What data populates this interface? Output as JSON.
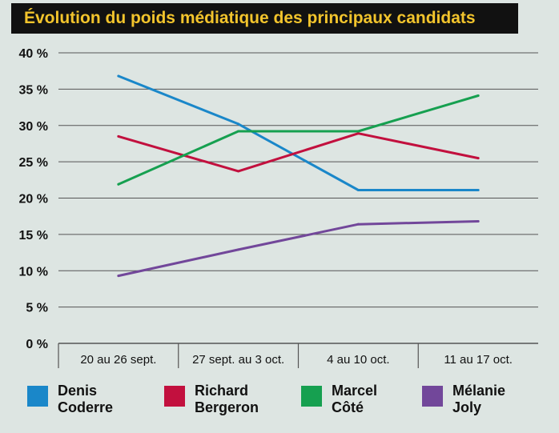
{
  "colors": {
    "background": "#dde5e2",
    "title_bg": "#111111",
    "title_text": "#f2c42c",
    "grid": "#555555"
  },
  "chart_data": {
    "type": "line",
    "title": "Évolution du poids médiatique des principaux candidats",
    "categories": [
      "20 au 26 sept.",
      "27 sept. au 3 oct.",
      "4 au 10 oct.",
      "11 au 17 oct."
    ],
    "ylim": [
      0,
      40
    ],
    "yticks": [
      0,
      5,
      10,
      15,
      20,
      25,
      30,
      35,
      40
    ],
    "ytick_labels": [
      "0 %",
      "5 %",
      "10 %",
      "15 %",
      "20 %",
      "25 %",
      "30 %",
      "35 %",
      "40 %"
    ],
    "grid": true,
    "legend_position": "bottom",
    "series": [
      {
        "name": "Denis Coderre",
        "name_lines": [
          "Denis",
          "Coderre"
        ],
        "color": "#1a87c9",
        "values": [
          36.8,
          30.2,
          21.1,
          21.1
        ]
      },
      {
        "name": "Richard Bergeron",
        "name_lines": [
          "Richard",
          "Bergeron"
        ],
        "color": "#c2103e",
        "values": [
          28.5,
          23.7,
          28.9,
          25.5
        ]
      },
      {
        "name": "Marcel Côté",
        "name_lines": [
          "Marcel",
          "Côté"
        ],
        "color": "#16a050",
        "values": [
          21.9,
          29.2,
          29.2,
          34.1
        ]
      },
      {
        "name": "Mélanie Joly",
        "name_lines": [
          "Mélanie",
          "Joly"
        ],
        "color": "#72479a",
        "values": [
          9.3,
          12.9,
          16.4,
          16.8
        ]
      }
    ]
  }
}
